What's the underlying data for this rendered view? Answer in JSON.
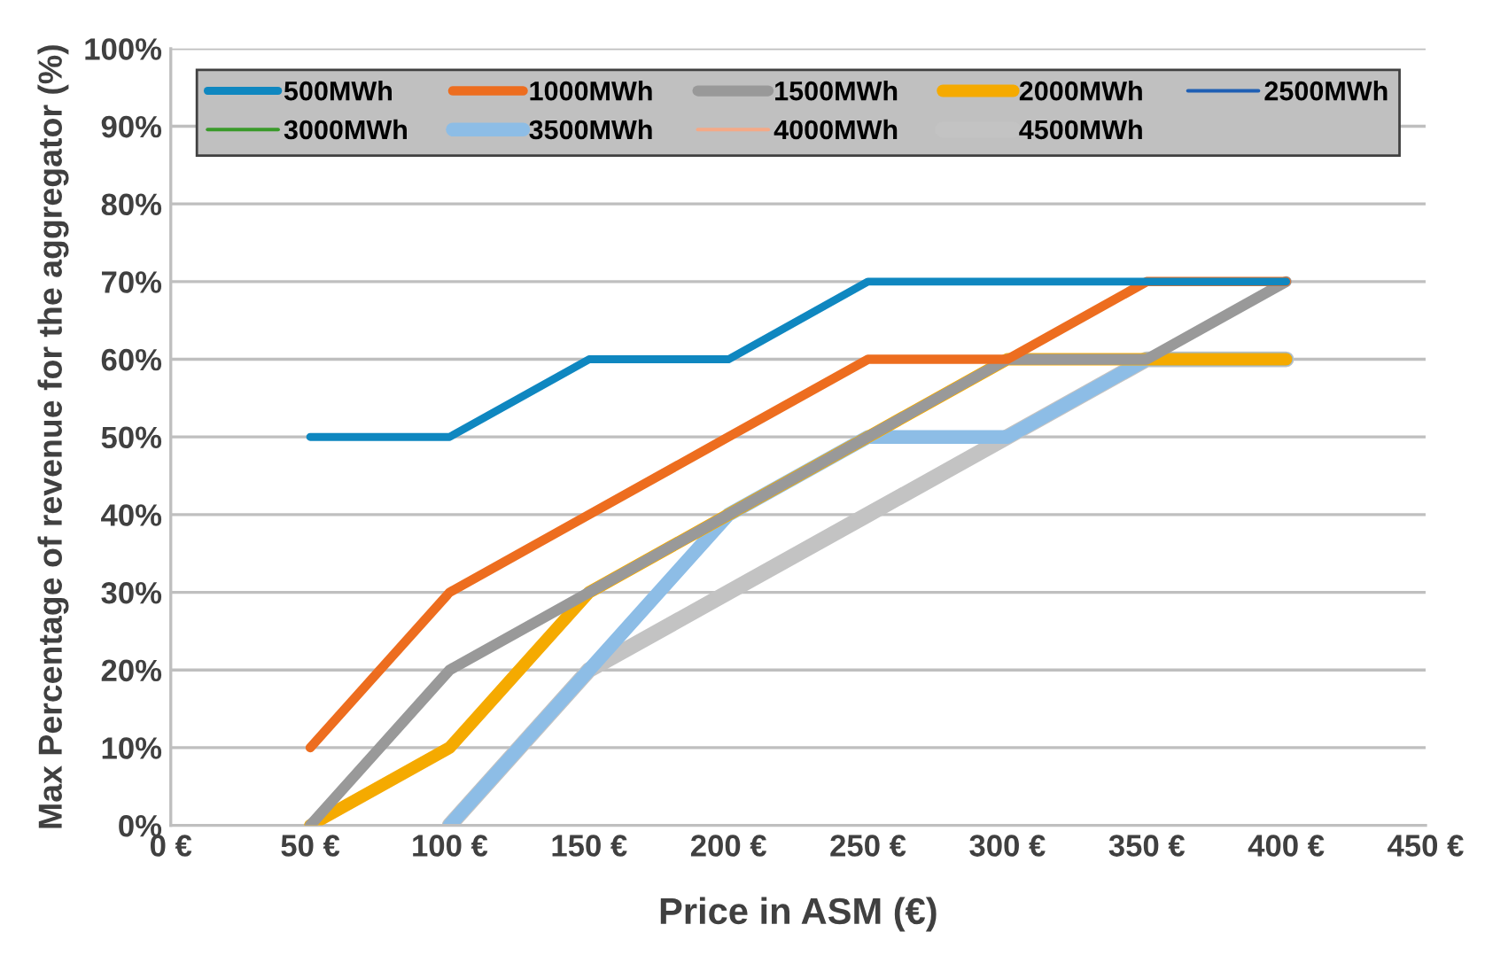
{
  "chart_data": {
    "type": "line",
    "xlabel": "Price in ASM (€)",
    "ylabel": "Max Percentage of revenue for the aggregator (%)",
    "x": [
      50,
      100,
      150,
      200,
      250,
      300,
      350,
      400
    ],
    "series": [
      {
        "name": "500MWh",
        "color": "#0f87c0",
        "values": [
          50,
          50,
          60,
          60,
          70,
          70,
          70,
          70
        ]
      },
      {
        "name": "1000MWh",
        "color": "#ed6d1f",
        "values": [
          10,
          30,
          40,
          50,
          60,
          60,
          70,
          70
        ]
      },
      {
        "name": "1500MWh",
        "color": "#999999",
        "values": [
          0,
          20,
          30,
          40,
          50,
          60,
          60,
          70
        ]
      },
      {
        "name": "2000MWh",
        "color": "#f5aa00",
        "values": [
          0,
          10,
          30,
          40,
          50,
          60,
          60,
          60
        ]
      },
      {
        "name": "2500MWh",
        "color": "#1f5fb4",
        "values": [
          null,
          null,
          null,
          null,
          null,
          null,
          null,
          null
        ]
      },
      {
        "name": "3000MWh",
        "color": "#3a9a2a",
        "values": [
          null,
          null,
          null,
          null,
          null,
          null,
          null,
          null
        ]
      },
      {
        "name": "3500MWh",
        "color": "#8dbde6",
        "values": [
          null,
          0,
          20,
          40,
          50,
          50,
          60,
          60
        ]
      },
      {
        "name": "4000MWh",
        "color": "#f4a987",
        "values": [
          null,
          null,
          null,
          null,
          null,
          null,
          null,
          null
        ]
      },
      {
        "name": "4500MWh",
        "color": "#c3c3c3",
        "values": [
          null,
          0,
          20,
          30,
          40,
          50,
          60,
          60
        ]
      }
    ],
    "xlim": [
      0,
      450
    ],
    "xticks": [
      {
        "value": 0,
        "label": "0 €"
      },
      {
        "value": 50,
        "label": "50 €"
      },
      {
        "value": 100,
        "label": "100 €"
      },
      {
        "value": 150,
        "label": "150 €"
      },
      {
        "value": 200,
        "label": "200 €"
      },
      {
        "value": 250,
        "label": "250 €"
      },
      {
        "value": 300,
        "label": "300 €"
      },
      {
        "value": 350,
        "label": "350 €"
      },
      {
        "value": 400,
        "label": "400 €"
      },
      {
        "value": 450,
        "label": "450 €"
      }
    ],
    "ylim": [
      0,
      100
    ],
    "yticks": [
      {
        "value": 0,
        "label": "0%"
      },
      {
        "value": 10,
        "label": "10%"
      },
      {
        "value": 20,
        "label": "20%"
      },
      {
        "value": 30,
        "label": "30%"
      },
      {
        "value": 40,
        "label": "40%"
      },
      {
        "value": 50,
        "label": "50%"
      },
      {
        "value": 60,
        "label": "60%"
      },
      {
        "value": 70,
        "label": "70%"
      },
      {
        "value": 80,
        "label": "80%"
      },
      {
        "value": 90,
        "label": "90%"
      },
      {
        "value": 100,
        "label": "100%"
      }
    ],
    "grid": "y",
    "legend": "top",
    "marker": "none",
    "line_style": "solid"
  }
}
